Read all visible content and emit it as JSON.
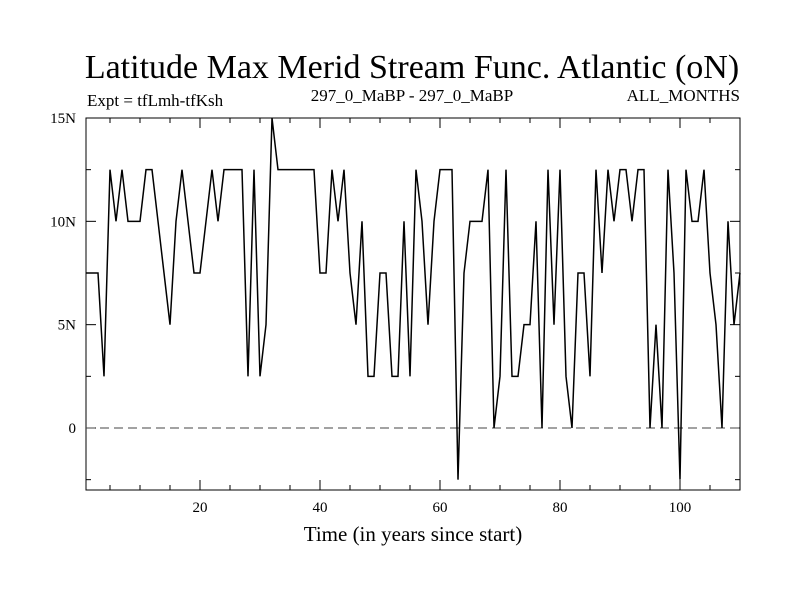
{
  "chart_data": {
    "type": "line",
    "title": "Latitude Max Merid Stream Func. Atlantic (oN)",
    "subtitle_left": "Expt = tfLmh-tfKsh",
    "subtitle_center": "297_0_MaBP - 297_0_MaBP",
    "subtitle_right": "ALL_MONTHS",
    "xlabel": "Time (in years since start)",
    "ylabel": "",
    "xlim": [
      1,
      110
    ],
    "ylim": [
      -3,
      15
    ],
    "x_ticks": [
      20,
      40,
      60,
      80,
      100
    ],
    "x_tick_labels": [
      "20",
      "40",
      "60",
      "80",
      "100"
    ],
    "y_ticks": [
      0,
      5,
      10,
      15
    ],
    "y_tick_labels": [
      "0",
      "5N",
      "10N",
      "15N"
    ],
    "reference_line": 0,
    "series": [
      {
        "name": "Latitude",
        "x": [
          1,
          2,
          3,
          4,
          5,
          6,
          7,
          8,
          9,
          10,
          11,
          12,
          13,
          14,
          15,
          16,
          17,
          18,
          19,
          20,
          21,
          22,
          23,
          24,
          25,
          26,
          27,
          28,
          29,
          30,
          31,
          32,
          33,
          34,
          35,
          36,
          37,
          38,
          39,
          40,
          41,
          42,
          43,
          44,
          45,
          46,
          47,
          48,
          49,
          50,
          51,
          52,
          53,
          54,
          55,
          56,
          57,
          58,
          59,
          60,
          61,
          62,
          63,
          64,
          65,
          66,
          67,
          68,
          69,
          70,
          71,
          72,
          73,
          74,
          75,
          76,
          77,
          78,
          79,
          80,
          81,
          82,
          83,
          84,
          85,
          86,
          87,
          88,
          89,
          90,
          91,
          92,
          93,
          94,
          95,
          96,
          97,
          98,
          99,
          100,
          101,
          102,
          103,
          104,
          105,
          106,
          107,
          108,
          109,
          110
        ],
        "values": [
          7.5,
          7.5,
          7.5,
          2.5,
          12.5,
          10,
          12.5,
          10,
          10,
          10,
          12.5,
          12.5,
          10,
          7.5,
          5,
          10,
          12.5,
          10,
          7.5,
          7.5,
          10,
          12.5,
          10,
          12.5,
          12.5,
          12.5,
          12.5,
          2.5,
          12.5,
          2.5,
          5,
          15,
          12.5,
          12.5,
          12.5,
          12.5,
          12.5,
          12.5,
          12.5,
          7.5,
          7.5,
          12.5,
          10,
          12.5,
          7.5,
          5,
          10,
          2.5,
          2.5,
          7.5,
          7.5,
          2.5,
          2.5,
          10,
          2.5,
          12.5,
          10,
          5,
          10,
          12.5,
          12.5,
          12.5,
          -2.5,
          7.5,
          10,
          10,
          10,
          12.5,
          0,
          2.5,
          12.5,
          2.5,
          2.5,
          5,
          5,
          10,
          0,
          12.5,
          5,
          12.5,
          2.5,
          0,
          7.5,
          7.5,
          2.5,
          12.5,
          7.5,
          12.5,
          10,
          12.5,
          12.5,
          10,
          12.5,
          12.5,
          0,
          5,
          0,
          12.5,
          7.5,
          -2.5,
          12.5,
          10,
          10,
          12.5,
          7.5,
          5,
          0,
          10,
          5,
          7.5
        ]
      }
    ]
  }
}
